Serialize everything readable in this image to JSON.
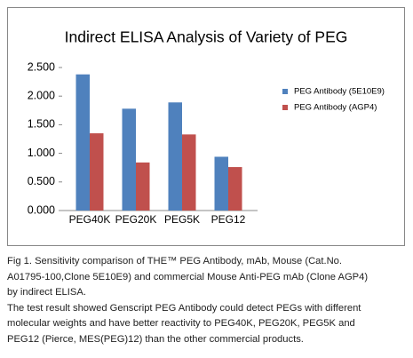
{
  "chart_data": {
    "type": "bar",
    "title": "Indirect ELISA Analysis of Variety of PEG",
    "categories": [
      "PEG40K",
      "PEG20K",
      "PEG5K",
      "PEG12"
    ],
    "series": [
      {
        "name": "PEG Antibody (5E10E9)",
        "color": "#4f81bd",
        "values": [
          2.38,
          1.78,
          1.89,
          0.94
        ]
      },
      {
        "name": "PEG Antibody (AGP4)",
        "color": "#c0504d",
        "values": [
          1.35,
          0.84,
          1.33,
          0.76
        ]
      }
    ],
    "ylim": [
      0,
      2.5
    ],
    "yticks": [
      {
        "value": 0,
        "label": "0.000"
      },
      {
        "value": 0.5,
        "label": "0.500"
      },
      {
        "value": 1,
        "label": "1.000"
      },
      {
        "value": 1.5,
        "label": "1.500"
      },
      {
        "value": 2,
        "label": "2.000"
      },
      {
        "value": 2.5,
        "label": "2.500"
      }
    ],
    "grid": false,
    "legend": "right"
  },
  "caption": [
    "Fig 1. Sensitivity comparison of THE™ PEG Antibody, mAb, Mouse (Cat.No.",
    "A01795-100,Clone 5E10E9) and commercial Mouse Anti-PEG mAb (Clone AGP4)",
    "by indirect ELISA.",
    "The test result showed Genscript PEG Antibody could detect PEGs with different",
    "molecular weights and have better reactivity to PEG40K, PEG20K, PEG5K and",
    "PEG12 (Pierce, MES(PEG)12) than the other commercial products."
  ]
}
